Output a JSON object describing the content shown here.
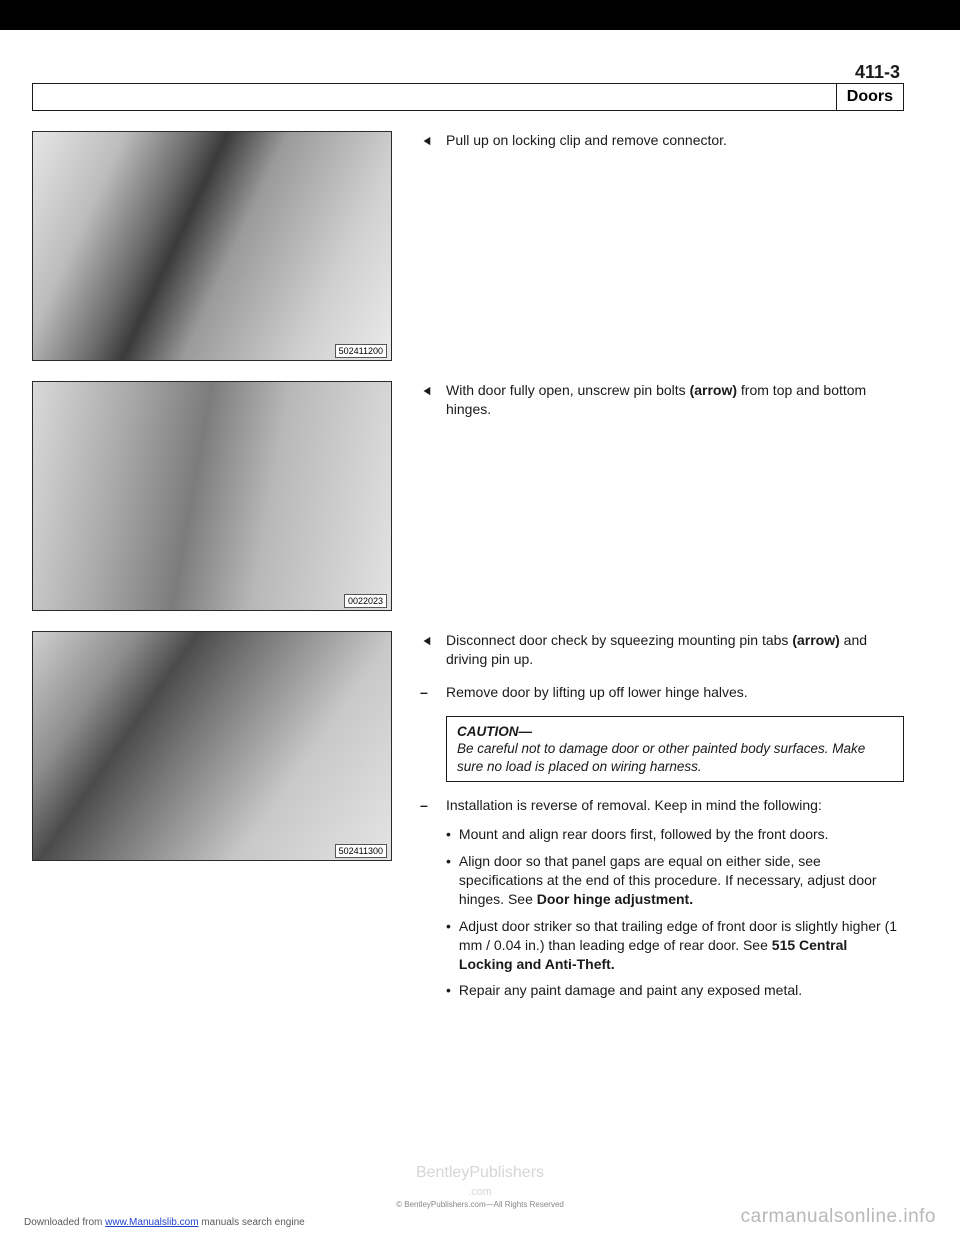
{
  "page_number": "411-3",
  "section_title": "Doors",
  "faint_header_text": "",
  "figures": [
    {
      "id": "502411200"
    },
    {
      "id": "0022023"
    },
    {
      "id": "502411300"
    }
  ],
  "steps": {
    "s1": "Pull up on locking clip and remove connector.",
    "s2_pre": "With door fully open, unscrew pin bolts ",
    "s2_bold": "(arrow)",
    "s2_post": " from top and bottom hinges.",
    "s3_pre": "Disconnect door check by squeezing mounting pin tabs ",
    "s3_bold": "(arrow)",
    "s3_post": " and driving pin up.",
    "s4": "Remove door by lifting up off lower hinge halves."
  },
  "caution": {
    "title": "CAUTION—",
    "body": "Be careful not to damage door or other painted body surfaces. Make sure no load is placed on wiring harness."
  },
  "install_intro": "Installation is reverse of removal. Keep in mind the following:",
  "bullets": {
    "b1": "Mount and align rear doors first, followed by the front doors.",
    "b2_pre": "Align door so that panel gaps are equal on either side, see specifications at the end of this procedure. If necessary, adjust door hinges. See ",
    "b2_bold": "Door hinge adjustment.",
    "b3_pre": "Adjust door striker so that trailing edge of front door is slightly higher (1 mm / 0.04 in.) than leading edge of rear door. See ",
    "b3_bold": "515 Central Locking and Anti-Theft.",
    "b4": "Repair any paint damage and paint any exposed metal."
  },
  "footer": {
    "left_pre": "Downloaded from ",
    "left_link": "www.Manualslib.com",
    "left_post": " manuals search engine",
    "center_main": "BentleyPublishers",
    "center_com": ".com",
    "center_small": "© BentleyPublishers.com—All Rights Reserved",
    "right": "carmanualsonline.info"
  },
  "colors": {
    "text": "#1a1a1a",
    "faint": "#cfcfcf",
    "footer_gray": "#b8b8b8"
  }
}
